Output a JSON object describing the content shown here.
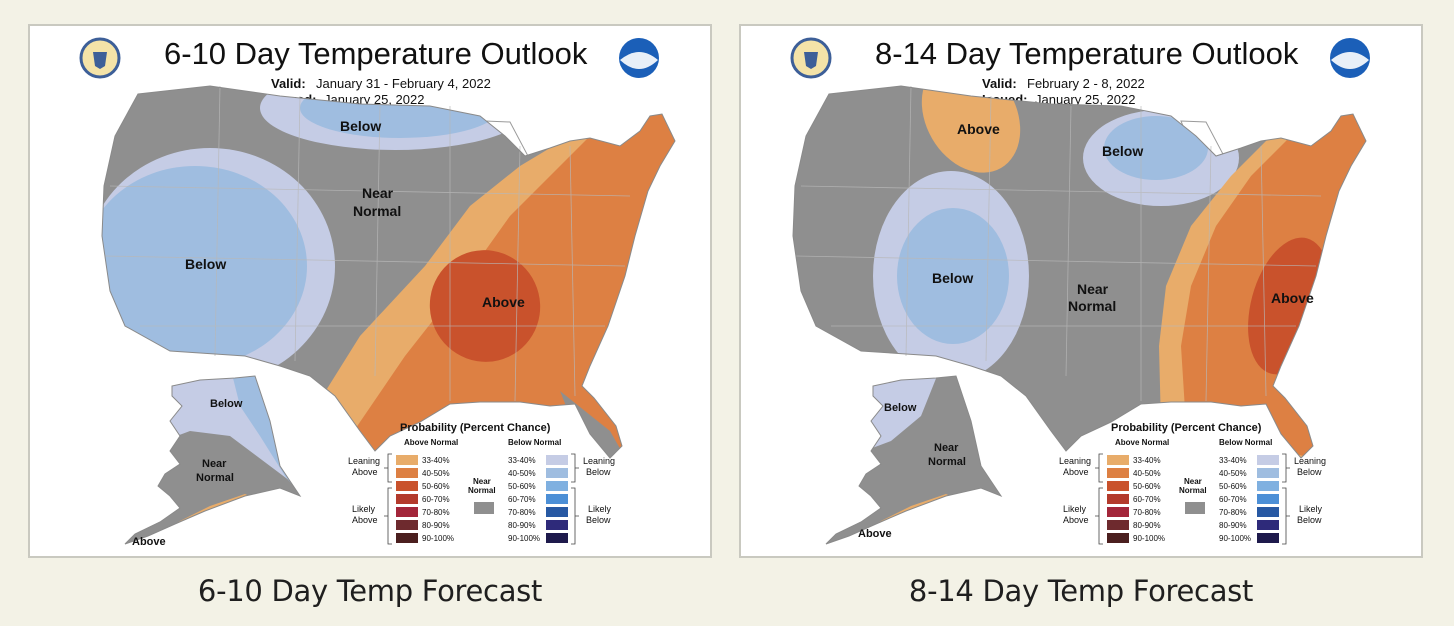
{
  "colors": {
    "page_bg": "#f3f2e6",
    "near_normal": "#8f8f8f",
    "leaning_above": "#e8ac6a",
    "above_40_50": "#dd8043",
    "above_50_60": "#c9522c",
    "leaning_below": "#c5cce5",
    "below_40_50": "#9fbde0"
  },
  "panels": [
    {
      "map_title": "6-10 Day Temperature Outlook",
      "valid_label": "Valid:",
      "valid_value": "January 31 - February 4, 2022",
      "issued_label": "Issued:",
      "issued_value": "January 25, 2022",
      "caption": "6-10 Day Temp Forecast",
      "labels": {
        "above_main": "Above",
        "below_north": "Below",
        "below_west": "Below",
        "near_normal_1": "Near",
        "near_normal_2": "Normal",
        "alaska_below": "Below",
        "alaska_near_1": "Near",
        "alaska_near_2": "Normal",
        "alaska_above": "Above"
      }
    },
    {
      "map_title": "8-14 Day Temperature Outlook",
      "valid_label": "Valid:",
      "valid_value": "February 2 - 8, 2022",
      "issued_label": "Issued:",
      "issued_value": "January 25, 2022",
      "caption": "8-14 Day Temp Forecast",
      "labels": {
        "above_north": "Above",
        "below_north": "Below",
        "below_west": "Below",
        "near_normal_1": "Near",
        "near_normal_2": "Normal",
        "above_east": "Above",
        "alaska_below": "Below",
        "alaska_near_1": "Near",
        "alaska_near_2": "Normal",
        "alaska_above": "Above"
      }
    }
  ],
  "legend": {
    "title": "Probability (Percent Chance)",
    "above_header": "Above Normal",
    "below_header": "Below Normal",
    "near_normal_1": "Near",
    "near_normal_2": "Normal",
    "leaning_above_1": "Leaning",
    "leaning_above_2": "Above",
    "likely_above_1": "Likely",
    "likely_above_2": "Above",
    "leaning_below_1": "Leaning",
    "leaning_below_2": "Below",
    "likely_below_1": "Likely",
    "likely_below_2": "Below",
    "ranges": [
      "33-40%",
      "40-50%",
      "50-60%",
      "60-70%",
      "70-80%",
      "80-90%",
      "90-100%"
    ],
    "above_colors": [
      "#e8ac6a",
      "#dd8043",
      "#c9522c",
      "#b33a2c",
      "#a3263a",
      "#6e2a2e",
      "#4b1f1f"
    ],
    "below_colors": [
      "#c5cce5",
      "#9fbde0",
      "#7fb0e0",
      "#4c8fd6",
      "#2859a3",
      "#2e2a7a",
      "#1e1a4c"
    ]
  }
}
